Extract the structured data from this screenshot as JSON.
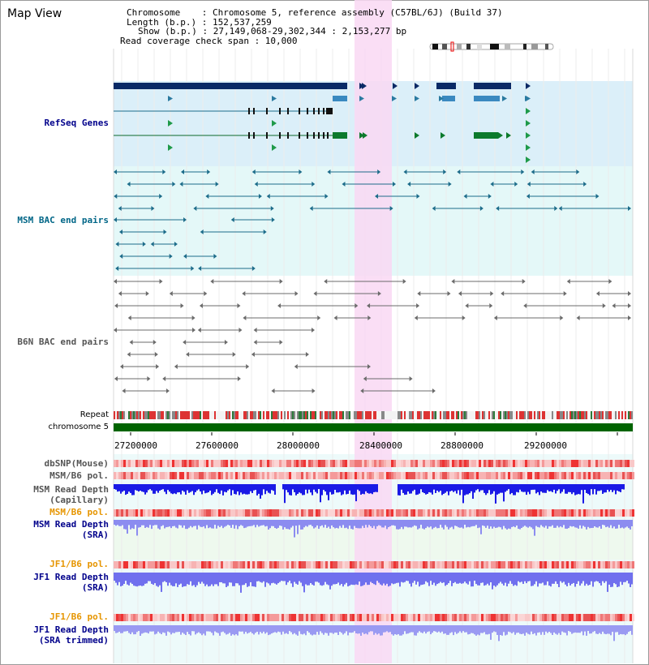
{
  "header": {
    "title": "Map View",
    "chromosome_line": "Chromosome    : Chromosome 5, reference assembly (C57BL/6J) (Build 37)",
    "length_line": "Length (b.p.) : 152,537,259",
    "show_line": "Show (b.p.) : 27,149,068-29,302,344 : 2,153,277 bp",
    "coverage_line": "Read coverage check span : 10,000"
  },
  "tracks": {
    "refseq": "RefSeq Genes",
    "msm_bac": "MSM BAC end pairs",
    "b6n_bac": "B6N BAC end pairs",
    "repeat": "Repeat",
    "chromosome": "chromosome 5",
    "dbsnp": "dbSNP(Mouse)",
    "msm_b6_pol_1": "MSM/B6 pol.",
    "msm_depth_cap_1": "MSM Read Depth",
    "msm_depth_cap_2": "(Capillary)",
    "msm_b6_pol_2": "MSM/B6 pol.",
    "msm_depth_sra_1": "MSM Read Depth",
    "msm_depth_sra_2": "(SRA)",
    "jf1_b6_pol_1": "JF1/B6 pol.",
    "jf1_depth_sra_1": "JF1 Read Depth",
    "jf1_depth_sra_2": "(SRA)",
    "jf1_b6_pol_2": "JF1/B6 pol.",
    "jf1_depth_trim_1": "JF1 Read Depth",
    "jf1_depth_trim_2": "(SRA trimmed)"
  },
  "axis": {
    "ticks": [
      "27200000",
      "27600000",
      "28000000",
      "28400000",
      "28800000",
      "29200000"
    ]
  },
  "colors": {
    "refseq_label": "#00008b",
    "msm_bac_label": "#006687",
    "b6n_label": "#555555",
    "depth_label": "#00008b",
    "pol_label": "#e69500",
    "highlight": "#f9d8f3",
    "chromosome_bar": "#006400"
  }
}
